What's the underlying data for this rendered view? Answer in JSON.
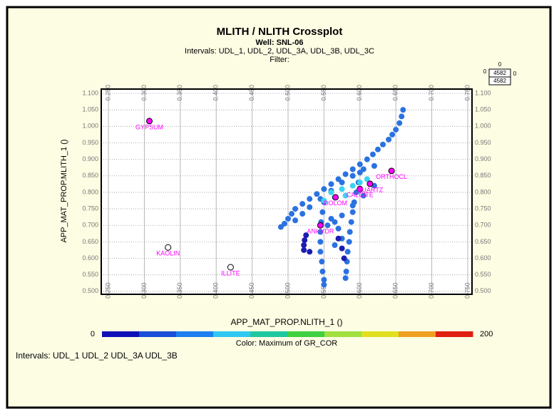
{
  "chart_data": {
    "type": "scatter",
    "title": "MLITH / NLITH Crossplot",
    "subtitle": "Well: SNL-06",
    "intervals_line": "Intervals: UDL_1, UDL_2, UDL_3A, UDL_3B, UDL_3C",
    "filter_line": "Filter:",
    "x_label": "APP_MAT_PROP.NLITH_1 ()",
    "y_label": "APP_MAT_PROP.MLITH_1 ()",
    "xlim": [
      0.24,
      0.756
    ],
    "ylim": [
      0.491,
      1.113
    ],
    "xticks": [
      {
        "value": 0.25,
        "label": "0.250"
      },
      {
        "value": 0.3,
        "label": "0.300"
      },
      {
        "value": 0.35,
        "label": "0.350"
      },
      {
        "value": 0.4,
        "label": "0.400"
      },
      {
        "value": 0.45,
        "label": "0.450"
      },
      {
        "value": 0.5,
        "label": "0.500"
      },
      {
        "value": 0.55,
        "label": "0.550"
      },
      {
        "value": 0.6,
        "label": "0.600"
      },
      {
        "value": 0.65,
        "label": "0.650"
      },
      {
        "value": 0.7,
        "label": "0.700"
      },
      {
        "value": 0.75,
        "label": "0.750"
      }
    ],
    "yticks": [
      {
        "value": 0.5,
        "label": "0.500"
      },
      {
        "value": 0.55,
        "label": "0.550"
      },
      {
        "value": 0.6,
        "label": "0.600"
      },
      {
        "value": 0.65,
        "label": "0.650"
      },
      {
        "value": 0.7,
        "label": "0.700"
      },
      {
        "value": 0.75,
        "label": "0.750"
      },
      {
        "value": 0.8,
        "label": "0.800"
      },
      {
        "value": 0.85,
        "label": "0.850"
      },
      {
        "value": 0.9,
        "label": "0.900"
      },
      {
        "value": 0.95,
        "label": "0.950"
      },
      {
        "value": 1.0,
        "label": "1.000"
      },
      {
        "value": 1.05,
        "label": "1.050"
      },
      {
        "value": 1.1,
        "label": "1.100"
      }
    ],
    "grid": true,
    "series": [
      {
        "color": "#2a72e0",
        "x": [
          0.66,
          0.658,
          0.655,
          0.65,
          0.645,
          0.64,
          0.632,
          0.625,
          0.618,
          0.61,
          0.6,
          0.59,
          0.58,
          0.57,
          0.56,
          0.55,
          0.54,
          0.53,
          0.52,
          0.51,
          0.505,
          0.5,
          0.495,
          0.49,
          0.62,
          0.605,
          0.59,
          0.575,
          0.56,
          0.545,
          0.53,
          0.52,
          0.51,
          0.55,
          0.548,
          0.546,
          0.545,
          0.545,
          0.545,
          0.547,
          0.548,
          0.55,
          0.55,
          0.6,
          0.598,
          0.595,
          0.592,
          0.59,
          0.588,
          0.586,
          0.585,
          0.583,
          0.582,
          0.581,
          0.58,
          0.62,
          0.605,
          0.59,
          0.575,
          0.565,
          0.555,
          0.56,
          0.57,
          0.575,
          0.565
        ],
        "values": [
          1.05,
          1.03,
          1.01,
          0.99,
          0.975,
          0.96,
          0.945,
          0.93,
          0.915,
          0.9,
          0.885,
          0.87,
          0.855,
          0.84,
          0.825,
          0.81,
          0.795,
          0.78,
          0.765,
          0.75,
          0.735,
          0.72,
          0.705,
          0.695,
          0.88,
          0.87,
          0.85,
          0.83,
          0.805,
          0.78,
          0.755,
          0.735,
          0.715,
          0.77,
          0.74,
          0.71,
          0.68,
          0.65,
          0.62,
          0.59,
          0.56,
          0.535,
          0.52,
          0.86,
          0.83,
          0.8,
          0.77,
          0.74,
          0.71,
          0.68,
          0.65,
          0.62,
          0.59,
          0.56,
          0.54,
          0.82,
          0.79,
          0.76,
          0.73,
          0.71,
          0.7,
          0.72,
          0.69,
          0.66,
          0.64
        ]
      },
      {
        "color": "#1c1cb0",
        "x": [
          0.525,
          0.523,
          0.522,
          0.522,
          0.53,
          0.57,
          0.575,
          0.578
        ],
        "values": [
          0.67,
          0.655,
          0.64,
          0.625,
          0.62,
          0.66,
          0.63,
          0.6
        ]
      },
      {
        "color": "#3cd2f0",
        "x": [
          0.56,
          0.575,
          0.59,
          0.6,
          0.58,
          0.565,
          0.55,
          0.61
        ],
        "values": [
          0.8,
          0.81,
          0.82,
          0.83,
          0.79,
          0.785,
          0.775,
          0.84
        ]
      }
    ],
    "minerals": [
      {
        "label": "GYPSUM",
        "x": 0.307,
        "y": 1.016,
        "filled": true
      },
      {
        "label": "KAOLIN",
        "x": 0.333,
        "y": 0.633,
        "filled": false
      },
      {
        "label": "ILLITE",
        "x": 0.42,
        "y": 0.573,
        "filled": false
      },
      {
        "label": "ANHYDR",
        "x": 0.545,
        "y": 0.7,
        "filled": true
      },
      {
        "label": "DOLOM",
        "x": 0.566,
        "y": 0.785,
        "filled": true
      },
      {
        "label": "CALCITE",
        "x": 0.6,
        "y": 0.81,
        "filled": true
      },
      {
        "label": "QUARTZ",
        "x": 0.614,
        "y": 0.826,
        "filled": true
      },
      {
        "label": "ORTHOCL",
        "x": 0.644,
        "y": 0.865,
        "filled": true
      }
    ],
    "mineral_color": "#ff00ff",
    "colorbar": {
      "min": 0,
      "max": 200,
      "label": "Color: Maximum of GR_COR",
      "colors": [
        "#1010b8",
        "#1a4fd8",
        "#1e7ff0",
        "#30c8f0",
        "#20c8a0",
        "#40d040",
        "#a0e040",
        "#e0e020",
        "#f0a020",
        "#e02010"
      ]
    },
    "bottom_intervals": "Intervals:   UDL_1   UDL_2   UDL_3A   UDL_3B",
    "depth_box": {
      "top": "0",
      "upper": "4582",
      "lower": "4582",
      "left": "0",
      "right": "0"
    }
  }
}
